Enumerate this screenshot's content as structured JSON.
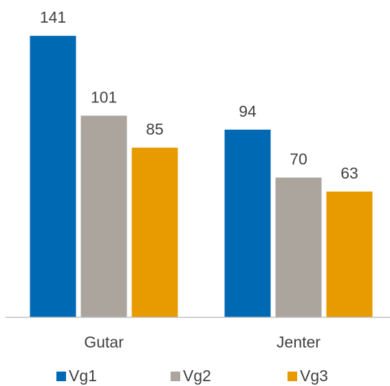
{
  "chart_data": {
    "type": "bar",
    "categories": [
      "Gutar",
      "Jenter"
    ],
    "series": [
      {
        "name": "Vg1",
        "color": "#0069b4",
        "values": [
          141,
          94
        ]
      },
      {
        "name": "Vg2",
        "color": "#aca59e",
        "values": [
          101,
          70
        ]
      },
      {
        "name": "Vg3",
        "color": "#e89b00",
        "values": [
          85,
          63
        ]
      }
    ],
    "ylim": [
      0,
      150
    ],
    "grid": false,
    "legend": "bottom"
  }
}
